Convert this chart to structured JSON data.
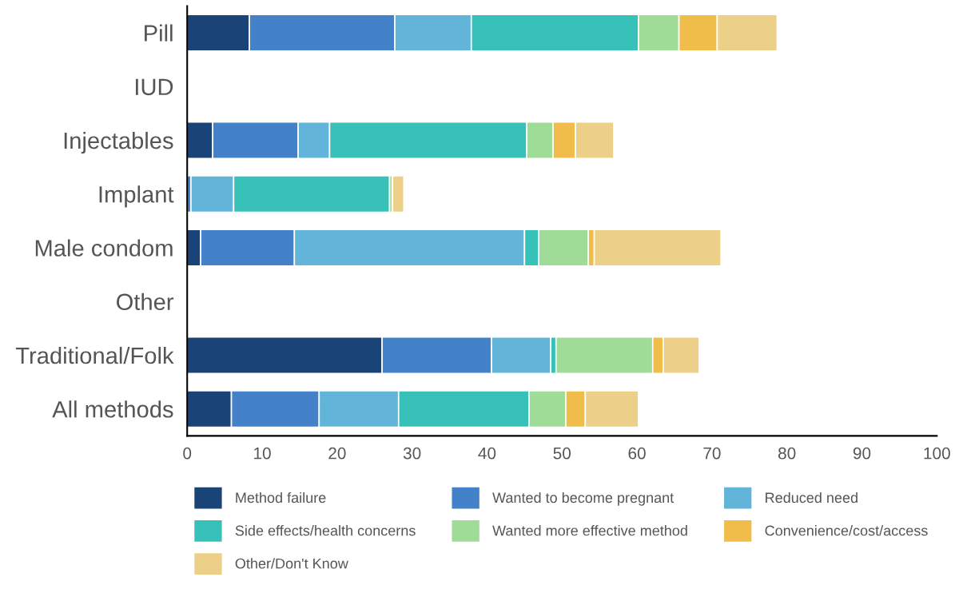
{
  "chart_data": {
    "type": "bar",
    "orientation": "horizontal",
    "stacked": true,
    "relative": false,
    "categories": [
      "Pill",
      "IUD",
      "Injectables",
      "Implant",
      "Male condom",
      "Other",
      "Traditional/Folk",
      "All methods"
    ],
    "xlim": [
      0,
      100
    ],
    "xticks": [
      0,
      10,
      20,
      30,
      40,
      50,
      60,
      70,
      80,
      90,
      100
    ],
    "grid": false,
    "legend": "bottom",
    "series": [
      {
        "name": "Method failure",
        "color": "#1a4478",
        "values": [
          8.3,
          null,
          3.4,
          0,
          1.8,
          null,
          26.0,
          5.9
        ]
      },
      {
        "name": "Wanted to become pregnant",
        "color": "#4382c8",
        "values": [
          19.4,
          null,
          11.4,
          0.5,
          12.5,
          null,
          14.6,
          11.7
        ]
      },
      {
        "name": "Reduced need",
        "color": "#62b4d8",
        "values": [
          10.2,
          null,
          4.2,
          5.7,
          30.7,
          null,
          7.9,
          10.6
        ]
      },
      {
        "name": "Side effects/health concerns",
        "color": "#37c1b8",
        "values": [
          22.3,
          null,
          26.3,
          20.8,
          1.9,
          null,
          0.7,
          17.4
        ]
      },
      {
        "name": "Wanted more effective method",
        "color": "#9fdc98",
        "values": [
          5.4,
          null,
          3.5,
          0.4,
          6.6,
          null,
          12.9,
          4.9
        ]
      },
      {
        "name": "Convenience/cost/access",
        "color": "#f0bd4a",
        "values": [
          5.1,
          null,
          3.0,
          0,
          0.8,
          null,
          1.4,
          2.6
        ]
      },
      {
        "name": "Other/Don't Know",
        "color": "#edd088",
        "values": [
          8.0,
          null,
          5.1,
          1.5,
          16.9,
          null,
          4.8,
          7.1
        ]
      }
    ]
  }
}
